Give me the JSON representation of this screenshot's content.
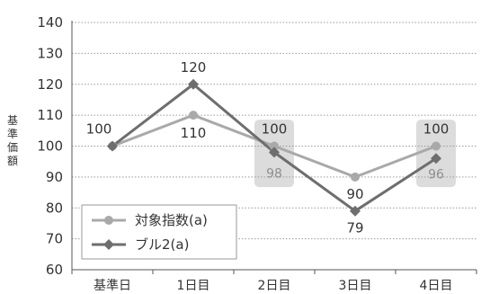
{
  "chart_data": {
    "type": "line",
    "categories": [
      "基準日",
      "1日目",
      "2日目",
      "3日目",
      "4日目"
    ],
    "ylabel": "基準価額",
    "ylim": [
      60,
      140
    ],
    "yticks": [
      60,
      70,
      80,
      90,
      100,
      110,
      120,
      130,
      140
    ],
    "grid": "horizontal dotted",
    "legend_position": "bottom-left",
    "series": [
      {
        "name": "対象指数(a)",
        "values": [
          100,
          110,
          100,
          90,
          100
        ],
        "color": "#a9a9a9",
        "marker": "circle"
      },
      {
        "name": "ブル2(a)",
        "values": [
          100,
          120,
          98,
          79,
          96
        ],
        "color": "#6e6e6e",
        "marker": "diamond"
      }
    ],
    "highlight_boxes": [
      2,
      4
    ],
    "highlight_color": "#dcdcdc"
  }
}
